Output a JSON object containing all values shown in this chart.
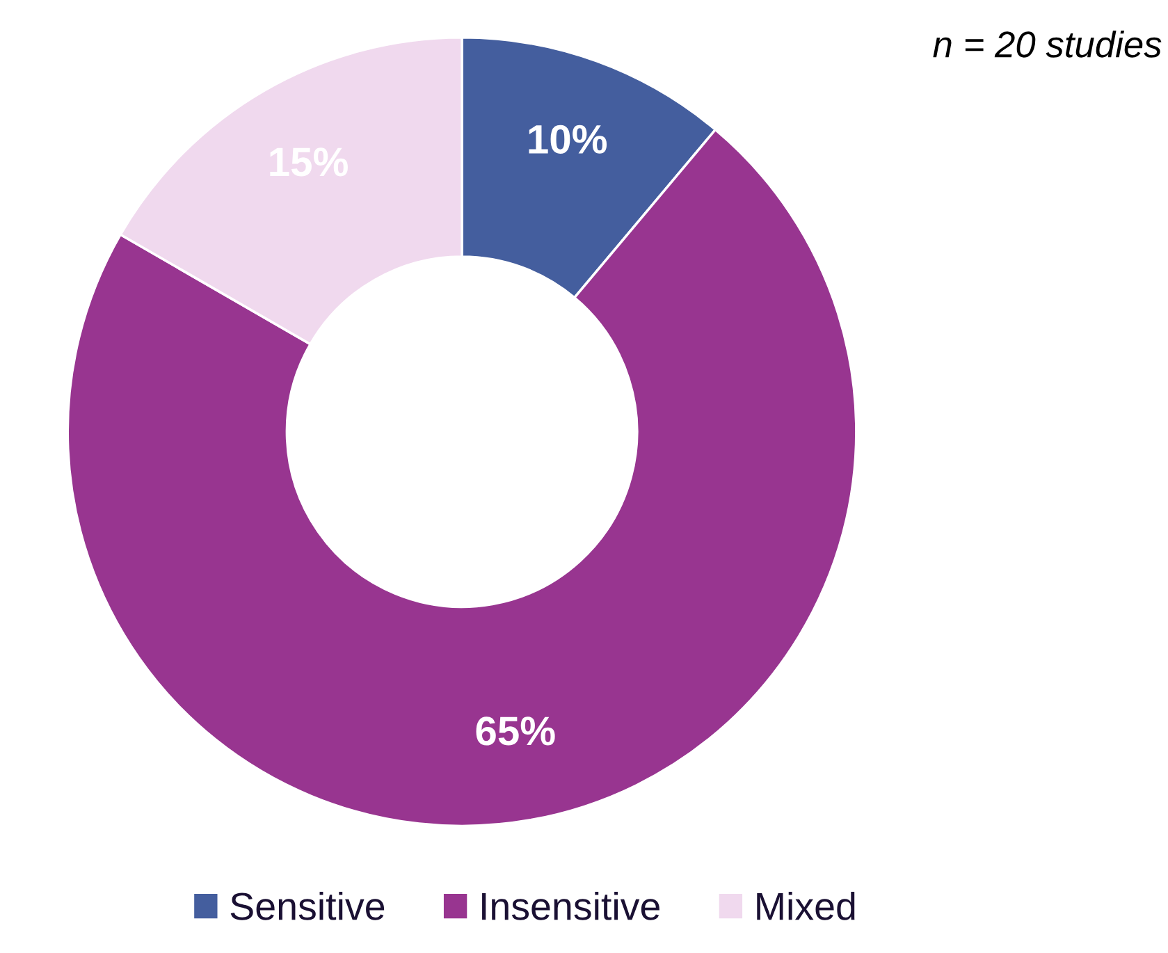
{
  "chart_data": {
    "type": "donut",
    "categories": [
      "Sensitive",
      "Insensitive",
      "Mixed"
    ],
    "values": [
      10,
      65,
      15
    ],
    "colors": [
      "#445e9e",
      "#983590",
      "#f0d9ee"
    ],
    "value_labels": [
      "10%",
      "65%",
      "15%"
    ],
    "legend": "bottom",
    "annotations": [
      "n = 20 studies"
    ]
  }
}
